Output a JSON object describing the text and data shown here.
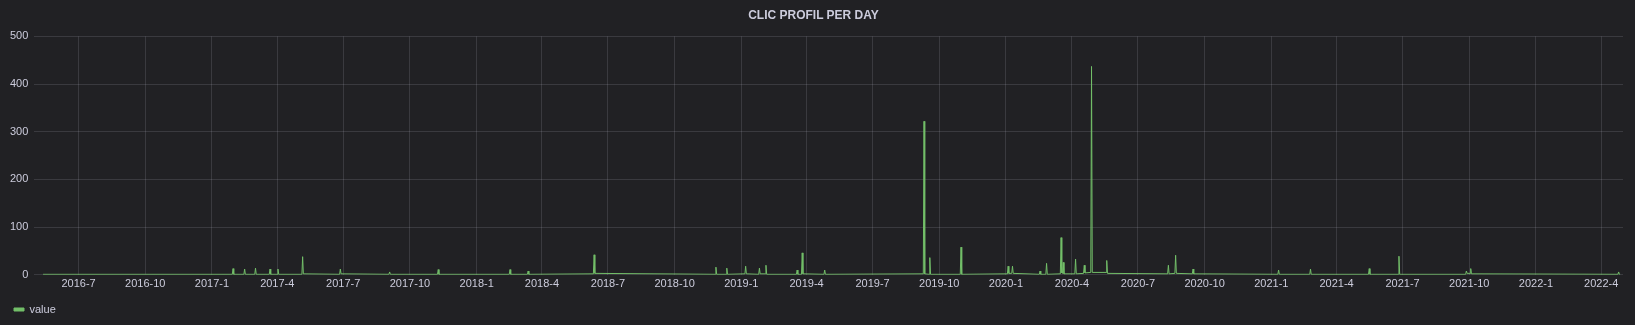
{
  "chart_data": {
    "type": "line",
    "title": "CLIC PROFIL PER DAY",
    "xlim": [
      "2016-05-01",
      "2022-05-01"
    ],
    "xticks": [
      {
        "value": "2016-07-01",
        "label": "2016-7"
      },
      {
        "value": "2016-10-01",
        "label": "2016-10"
      },
      {
        "value": "2017-01-01",
        "label": "2017-1"
      },
      {
        "value": "2017-04-01",
        "label": "2017-4"
      },
      {
        "value": "2017-07-01",
        "label": "2017-7"
      },
      {
        "value": "2017-10-01",
        "label": "2017-10"
      },
      {
        "value": "2018-01-01",
        "label": "2018-1"
      },
      {
        "value": "2018-04-01",
        "label": "2018-4"
      },
      {
        "value": "2018-07-01",
        "label": "2018-7"
      },
      {
        "value": "2018-10-01",
        "label": "2018-10"
      },
      {
        "value": "2019-01-01",
        "label": "2019-1"
      },
      {
        "value": "2019-04-01",
        "label": "2019-4"
      },
      {
        "value": "2019-07-01",
        "label": "2019-7"
      },
      {
        "value": "2019-10-01",
        "label": "2019-10"
      },
      {
        "value": "2020-01-01",
        "label": "2020-1"
      },
      {
        "value": "2020-04-01",
        "label": "2020-4"
      },
      {
        "value": "2020-07-01",
        "label": "2020-7"
      },
      {
        "value": "2020-10-01",
        "label": "2020-10"
      },
      {
        "value": "2021-01-01",
        "label": "2021-1"
      },
      {
        "value": "2021-04-01",
        "label": "2021-4"
      },
      {
        "value": "2021-07-01",
        "label": "2021-7"
      },
      {
        "value": "2021-10-01",
        "label": "2021-10"
      },
      {
        "value": "2022-01-01",
        "label": "2022-1"
      },
      {
        "value": "2022-04-01",
        "label": "2022-4"
      }
    ],
    "ylim": [
      0,
      500
    ],
    "yticks": [
      0,
      100,
      200,
      300,
      400,
      500
    ],
    "grid": true,
    "legend": "bottom left",
    "marker": "none",
    "series": [
      {
        "name": "value",
        "color": "#73bf69",
        "x": [
          "2016-05-13",
          "2016-10-01",
          "2017-01-29",
          "2017-01-30",
          "2017-01-31",
          "2017-02-14",
          "2017-02-15",
          "2017-02-16",
          "2017-03-01",
          "2017-03-02",
          "2017-03-03",
          "2017-03-21",
          "2017-03-22",
          "2017-03-23",
          "2017-04-01",
          "2017-04-02",
          "2017-04-03",
          "2017-05-05",
          "2017-05-06",
          "2017-05-07",
          "2017-06-26",
          "2017-06-27",
          "2017-06-28",
          "2017-09-02",
          "2017-09-03",
          "2017-09-04",
          "2017-11-08",
          "2017-11-09",
          "2017-11-10",
          "2018-02-15",
          "2018-02-16",
          "2018-02-17",
          "2018-03-12",
          "2018-03-13",
          "2018-03-14",
          "2018-06-11",
          "2018-06-12",
          "2018-06-13",
          "2018-11-26",
          "2018-11-27",
          "2018-11-28",
          "2018-12-11",
          "2018-12-12",
          "2018-12-13",
          "2019-01-06",
          "2019-01-07",
          "2019-01-08",
          "2019-01-25",
          "2019-01-26",
          "2019-01-27",
          "2019-02-03",
          "2019-02-04",
          "2019-02-05",
          "2019-03-18",
          "2019-03-19",
          "2019-03-20",
          "2019-03-25",
          "2019-03-26",
          "2019-03-27",
          "2019-04-25",
          "2019-04-26",
          "2019-04-27",
          "2019-09-09",
          "2019-09-10",
          "2019-09-11",
          "2019-09-17",
          "2019-09-18",
          "2019-09-19",
          "2019-10-30",
          "2019-10-31",
          "2019-11-01",
          "2020-01-03",
          "2020-01-04",
          "2020-01-05",
          "2020-01-09",
          "2020-01-10",
          "2020-01-11",
          "2020-02-16",
          "2020-02-17",
          "2020-02-18",
          "2020-02-25",
          "2020-02-26",
          "2020-02-27",
          "2020-03-16",
          "2020-03-17",
          "2020-03-18",
          "2020-03-19",
          "2020-03-20",
          "2020-03-21",
          "2020-04-05",
          "2020-04-06",
          "2020-04-07",
          "2020-04-17",
          "2020-04-18",
          "2020-04-19",
          "2020-04-27",
          "2020-04-28",
          "2020-04-29",
          "2020-05-18",
          "2020-05-19",
          "2020-05-20",
          "2020-08-11",
          "2020-08-12",
          "2020-08-13",
          "2020-08-21",
          "2020-08-22",
          "2020-08-23",
          "2020-09-14",
          "2020-09-15",
          "2020-09-16",
          "2021-01-10",
          "2021-01-11",
          "2021-01-12",
          "2021-02-23",
          "2021-02-24",
          "2021-02-25",
          "2021-05-15",
          "2021-05-16",
          "2021-05-17",
          "2021-06-25",
          "2021-06-26",
          "2021-06-27",
          "2021-09-26",
          "2021-09-27",
          "2021-09-28",
          "2021-10-02",
          "2021-10-03",
          "2021-10-04",
          "2022-04-24",
          "2022-04-25",
          "2022-04-26",
          "2022-04-27"
        ],
        "values": [
          1,
          1,
          1,
          13,
          1,
          1,
          12,
          1,
          1,
          14,
          1,
          1,
          12,
          1,
          1,
          12,
          1,
          1,
          38,
          2,
          1,
          12,
          2,
          1,
          6,
          1,
          1,
          11,
          1,
          1,
          11,
          1,
          1,
          8,
          1,
          2,
          42,
          3,
          1,
          16,
          1,
          1,
          14,
          1,
          2,
          18,
          2,
          1,
          14,
          2,
          2,
          20,
          1,
          1,
          10,
          1,
          1,
          46,
          2,
          1,
          10,
          1,
          2,
          322,
          2,
          1,
          36,
          1,
          1,
          58,
          1,
          2,
          18,
          3,
          3,
          18,
          3,
          1,
          8,
          1,
          1,
          24,
          1,
          2,
          78,
          4,
          3,
          26,
          2,
          2,
          33,
          2,
          3,
          20,
          4,
          5,
          437,
          5,
          5,
          30,
          3,
          2,
          20,
          2,
          3,
          41,
          3,
          2,
          12,
          2,
          1,
          10,
          1,
          1,
          12,
          1,
          1,
          13,
          1,
          1,
          39,
          1,
          1,
          8,
          3,
          3,
          13,
          2,
          1,
          6,
          1,
          1
        ]
      }
    ]
  }
}
